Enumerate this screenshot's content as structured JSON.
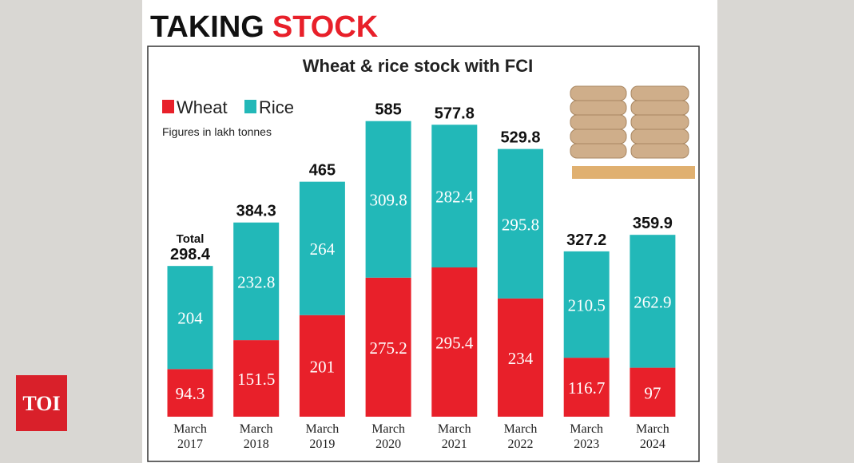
{
  "header": {
    "title_1": "TAKING",
    "title_2": "STOCK"
  },
  "chart_data": {
    "type": "stacked_bar",
    "title": "Wheat & rice stock with FCI",
    "note": "Figures in lakh tonnes",
    "total_label": "Total",
    "categories": [
      "March 2017",
      "March 2018",
      "March 2019",
      "March 2020",
      "March 2021",
      "March 2022",
      "March 2023",
      "March 2024"
    ],
    "series": [
      {
        "name": "Wheat",
        "color": "#e8202a",
        "values": [
          94.3,
          151.5,
          201,
          275.2,
          295.4,
          234,
          116.7,
          97
        ]
      },
      {
        "name": "Rice",
        "color": "#22b8b8",
        "values": [
          204,
          232.8,
          264,
          309.8,
          282.4,
          295.8,
          210.5,
          262.9
        ]
      }
    ],
    "totals": [
      298.4,
      384.3,
      465,
      585,
      577.8,
      529.8,
      327.2,
      359.9
    ]
  },
  "logo": "TOI"
}
